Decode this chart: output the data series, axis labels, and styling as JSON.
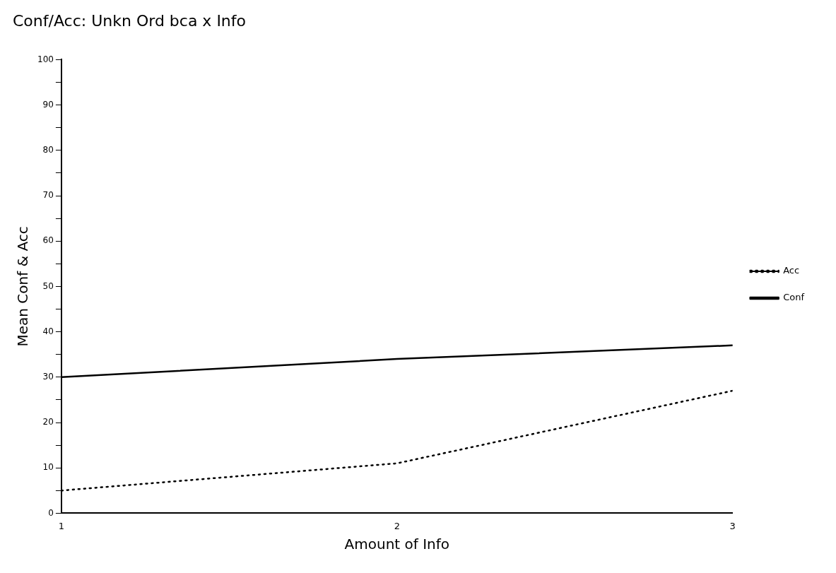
{
  "chart_data": {
    "type": "line",
    "title": "Conf/Acc: Unkn Ord bca x Info",
    "xlabel": "Amount of Info",
    "ylabel": "Mean Conf & Acc",
    "x": [
      1,
      2,
      3
    ],
    "xlim": [
      1,
      3
    ],
    "xticks": [
      1,
      2,
      3
    ],
    "ylim": [
      0,
      100
    ],
    "yticks": [
      0,
      {
        "value": 5,
        "label": null
      },
      10,
      {
        "value": 15,
        "label": null
      },
      20,
      {
        "value": 25,
        "label": null
      },
      30,
      {
        "value": 35,
        "label": null
      },
      40,
      {
        "value": 45,
        "label": null
      },
      50,
      {
        "value": 55,
        "label": null
      },
      60,
      {
        "value": 65,
        "label": null
      },
      70,
      {
        "value": 75,
        "label": null
      },
      80,
      {
        "value": 85,
        "label": null
      },
      90,
      {
        "value": 95,
        "label": null
      },
      100
    ],
    "series": [
      {
        "name": "Acc",
        "color": "#000000",
        "values": [
          5,
          11,
          27
        ],
        "line_style": "dotted"
      },
      {
        "name": "Conf",
        "color": "#000000",
        "values": [
          30,
          34,
          37
        ],
        "line_style": "solid"
      }
    ],
    "grid": false,
    "legend": "right",
    "marker": "none"
  }
}
